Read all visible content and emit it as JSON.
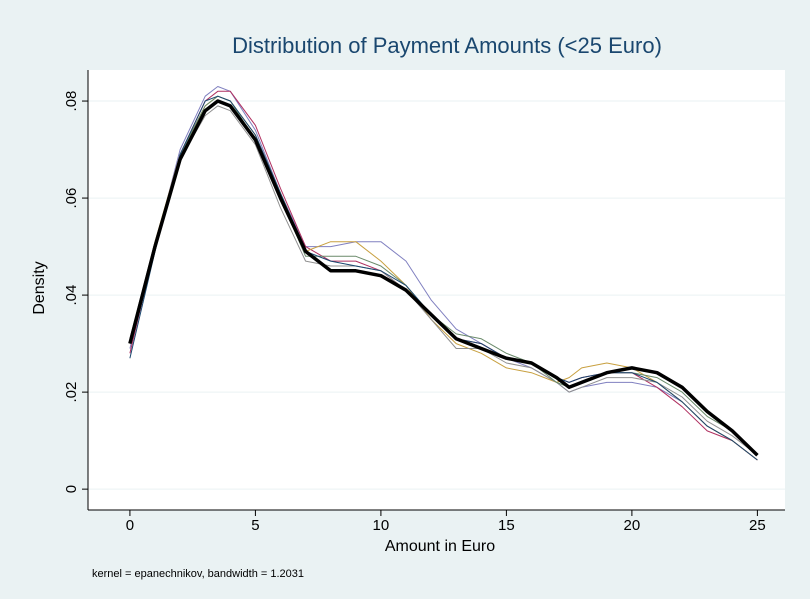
{
  "chart_data": {
    "type": "line",
    "title": "Distribution of Payment Amounts (<25 Euro)",
    "xlabel": "Amount in Euro",
    "ylabel": "Density",
    "note": "kernel = epanechnikov, bandwidth = 1.2031",
    "x": [
      0,
      1,
      2,
      3,
      3.5,
      4,
      5,
      6,
      7,
      8,
      9,
      10,
      11,
      12,
      13,
      14,
      15,
      16,
      17,
      17.5,
      18,
      19,
      20,
      21,
      22,
      23,
      24,
      25
    ],
    "series": [
      {
        "color": "#8080c0",
        "values": [
          0.029,
          0.05,
          0.07,
          0.081,
          0.083,
          0.082,
          0.074,
          0.061,
          0.05,
          0.05,
          0.051,
          0.051,
          0.047,
          0.039,
          0.033,
          0.03,
          0.027,
          0.025,
          0.022,
          0.02,
          0.021,
          0.022,
          0.022,
          0.021,
          0.018,
          0.013,
          0.01,
          0.006
        ]
      },
      {
        "color": "#b03060",
        "values": [
          0.028,
          0.05,
          0.069,
          0.08,
          0.082,
          0.082,
          0.075,
          0.062,
          0.05,
          0.047,
          0.047,
          0.045,
          0.041,
          0.036,
          0.031,
          0.03,
          0.027,
          0.026,
          0.023,
          0.022,
          0.023,
          0.024,
          0.024,
          0.021,
          0.017,
          0.012,
          0.01,
          0.006
        ]
      },
      {
        "color": "#c8a040",
        "values": [
          0.03,
          0.051,
          0.069,
          0.079,
          0.081,
          0.08,
          0.073,
          0.061,
          0.049,
          0.051,
          0.051,
          0.047,
          0.042,
          0.035,
          0.03,
          0.028,
          0.025,
          0.024,
          0.022,
          0.023,
          0.025,
          0.026,
          0.025,
          0.022,
          0.018,
          0.013,
          0.01,
          0.006
        ]
      },
      {
        "color": "#909090",
        "values": [
          0.031,
          0.051,
          0.068,
          0.077,
          0.079,
          0.078,
          0.071,
          0.058,
          0.047,
          0.046,
          0.046,
          0.045,
          0.041,
          0.035,
          0.029,
          0.029,
          0.026,
          0.025,
          0.022,
          0.02,
          0.021,
          0.023,
          0.023,
          0.022,
          0.019,
          0.014,
          0.011,
          0.007
        ]
      },
      {
        "color": "#6a8a6a",
        "values": [
          0.03,
          0.05,
          0.069,
          0.079,
          0.081,
          0.08,
          0.072,
          0.06,
          0.048,
          0.048,
          0.048,
          0.046,
          0.042,
          0.036,
          0.032,
          0.031,
          0.028,
          0.026,
          0.022,
          0.021,
          0.022,
          0.024,
          0.024,
          0.023,
          0.02,
          0.015,
          0.012,
          0.007
        ]
      },
      {
        "color": "#1a476f",
        "values": [
          0.027,
          0.049,
          0.069,
          0.08,
          0.081,
          0.08,
          0.073,
          0.061,
          0.049,
          0.047,
          0.046,
          0.045,
          0.042,
          0.036,
          0.031,
          0.03,
          0.027,
          0.026,
          0.023,
          0.022,
          0.023,
          0.024,
          0.024,
          0.022,
          0.018,
          0.013,
          0.01,
          0.006
        ]
      },
      {
        "color": "#000000",
        "values": [
          0.03,
          0.05,
          0.068,
          0.078,
          0.08,
          0.079,
          0.072,
          0.06,
          0.049,
          0.045,
          0.045,
          0.044,
          0.041,
          0.036,
          0.031,
          0.029,
          0.027,
          0.026,
          0.023,
          0.021,
          0.022,
          0.024,
          0.025,
          0.024,
          0.021,
          0.016,
          0.012,
          0.007
        ]
      }
    ],
    "xlim": [
      -1.67,
      26.1
    ],
    "ylim": [
      -0.0043,
      0.0864
    ],
    "xticks": [
      0,
      5,
      10,
      15,
      20,
      25
    ],
    "yticks": [
      0,
      {
        "value": 0.02,
        "label": ".02"
      },
      {
        "value": 0.04,
        "label": ".04"
      },
      {
        "value": 0.06,
        "label": ".06"
      },
      {
        "value": 0.08,
        "label": ".08"
      }
    ],
    "grid": true
  }
}
